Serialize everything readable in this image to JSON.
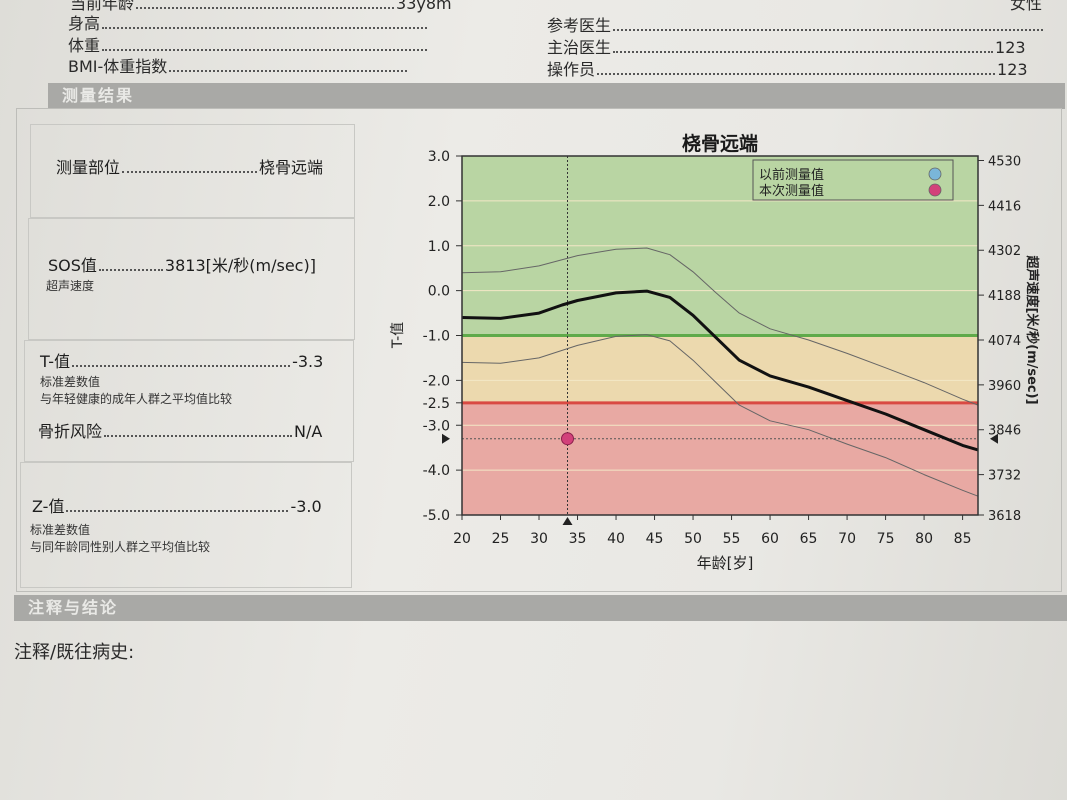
{
  "patient_info": {
    "age_label": "当前年龄",
    "age_value": "33y8m",
    "height_label": "身高",
    "weight_label": "体重",
    "bmi_label": "BMI-体重指数",
    "ref_doctor_label": "参考医生",
    "attending_label": "主治医生",
    "attending_value": "123",
    "operator_label": "操作员",
    "operator_value": "123",
    "gender_value": "女性"
  },
  "results_section": {
    "title": "测量结果"
  },
  "metrics": {
    "site_label": "测量部位",
    "site_value": "桡骨远端",
    "sos_label": "SOS值",
    "sos_value": "3813[米/秒(m/sec)]",
    "sos_sub": "超声速度",
    "t_label": "T-值",
    "t_value": "-3.3",
    "t_sub1": "标准差数值",
    "t_sub2": "与年轻健康的成年人群之平均值比较",
    "fracture_label": "骨折风险",
    "fracture_value": "N/A",
    "z_label": "Z-值",
    "z_value": "-3.0",
    "z_sub1": "标准差数值",
    "z_sub2": "与同年龄同性别人群之平均值比较"
  },
  "chart_data": {
    "type": "line",
    "title": "桡骨远端",
    "xlabel": "年龄[岁]",
    "ylabel": "T-值",
    "y2label": "超声速度[米/秒(m/sec)]",
    "xlim": [
      20,
      87
    ],
    "ylim": [
      -5.0,
      3.0
    ],
    "x_ticks": [
      20,
      25,
      30,
      35,
      40,
      45,
      50,
      55,
      60,
      65,
      70,
      75,
      80,
      85
    ],
    "y_ticks": [
      "3.0",
      "2.0",
      "1.0",
      "0.0",
      "-1.0",
      "-2.0",
      "-2.5",
      "-3.0",
      "-4.0",
      "-5.0"
    ],
    "y_tick_values": [
      3.0,
      2.0,
      1.0,
      0.0,
      -1.0,
      -2.0,
      -2.5,
      -3.0,
      -4.0,
      -5.0
    ],
    "y2_ticks": [
      "4530",
      "4416",
      "4302",
      "4188",
      "4074",
      "3960",
      "3846",
      "3732",
      "3618"
    ],
    "y2_tick_values": [
      2.9,
      1.9,
      0.9,
      -0.1,
      -1.1,
      -2.1,
      -3.1,
      -4.1,
      -5.0
    ],
    "zones": [
      {
        "from": -1.0,
        "to": 3.0,
        "color": "#b9d5a3"
      },
      {
        "from": -2.5,
        "to": -1.0,
        "color": "#ecd9ae"
      },
      {
        "from": -5.0,
        "to": -2.5,
        "color": "#e8a9a3"
      }
    ],
    "threshold_lines": [
      {
        "y": -1.0,
        "color": "#5faa4a"
      },
      {
        "y": -2.5,
        "color": "#d94a43"
      }
    ],
    "series": [
      {
        "role": "mean",
        "x": [
          20,
          25,
          30,
          33,
          35,
          40,
          44,
          47,
          50,
          53,
          56,
          60,
          65,
          70,
          75,
          80,
          85,
          87
        ],
        "y": [
          -0.6,
          -0.62,
          -0.5,
          -0.32,
          -0.22,
          -0.05,
          -0.01,
          -0.15,
          -0.55,
          -1.05,
          -1.55,
          -1.9,
          -2.15,
          -2.45,
          -2.75,
          -3.1,
          -3.45,
          -3.55
        ]
      },
      {
        "role": "upper",
        "x": [
          20,
          25,
          30,
          35,
          40,
          44,
          47,
          50,
          53,
          56,
          60,
          65,
          70,
          75,
          80,
          85,
          87
        ],
        "y": [
          0.4,
          0.42,
          0.55,
          0.78,
          0.92,
          0.95,
          0.8,
          0.42,
          -0.05,
          -0.5,
          -0.85,
          -1.1,
          -1.4,
          -1.72,
          -2.05,
          -2.42,
          -2.55
        ]
      },
      {
        "role": "lower",
        "x": [
          20,
          25,
          30,
          35,
          40,
          44,
          47,
          50,
          53,
          56,
          60,
          65,
          70,
          75,
          80,
          85,
          87
        ],
        "y": [
          -1.6,
          -1.62,
          -1.5,
          -1.22,
          -1.02,
          -0.98,
          -1.12,
          -1.55,
          -2.05,
          -2.55,
          -2.9,
          -3.1,
          -3.42,
          -3.72,
          -4.1,
          -4.45,
          -4.58
        ]
      }
    ],
    "points": [
      {
        "name": "本次测量值",
        "x": 33.7,
        "y": -3.3,
        "color": "#d2417a"
      }
    ],
    "marker": {
      "x": 33.7,
      "y": -3.3
    },
    "legend": [
      {
        "name": "以前测量值",
        "color": "#7ab6d9"
      },
      {
        "name": "本次测量值",
        "color": "#d2417a"
      }
    ],
    "legend_position": "top-right"
  },
  "notes_section": {
    "title": "注释与结论",
    "history_label": "注释/既往病史:"
  }
}
